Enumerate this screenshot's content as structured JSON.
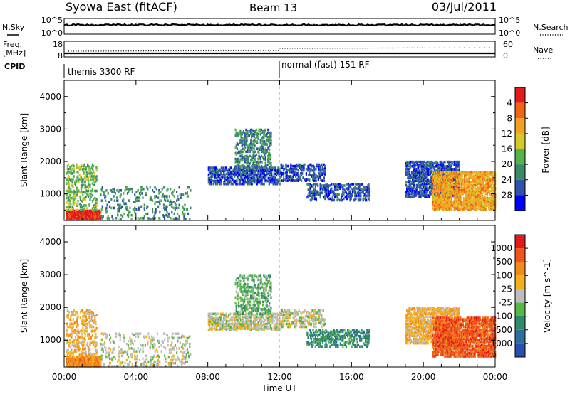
{
  "header": {
    "station": "Syowa East (fitACF)",
    "beam": "Beam 13",
    "date": "03/Jul/2011"
  },
  "noise_panel": {
    "left_label": "N.Sky",
    "left_ticks": [
      "10^5",
      "10^0"
    ],
    "right_label": "N.Search",
    "right_ticks": [
      "10^5",
      "10^0"
    ]
  },
  "freq_panel": {
    "left_label_1": "Freq.",
    "left_label_2": "[MHz]",
    "left_ticks": [
      "18",
      "8"
    ],
    "right_label": "Nave",
    "right_ticks": [
      "60",
      "0"
    ]
  },
  "cpid": {
    "label": "CPID",
    "segments": [
      {
        "name": "themis 3300 RF",
        "start_hour": 0,
        "end_hour": 12
      },
      {
        "name": "normal (fast) 151 RF",
        "start_hour": 12,
        "end_hour": 24
      }
    ]
  },
  "x_axis": {
    "label": "Time UT",
    "tick_labels": [
      "00:00",
      "04:00",
      "08:00",
      "12:00",
      "16:00",
      "20:00",
      "00:00"
    ],
    "range_hours": [
      0,
      24
    ]
  },
  "power_panel": {
    "ylabel": "Slant Range [km]",
    "y_ticks": [
      "1000",
      "2000",
      "3000",
      "4000"
    ],
    "colorbar_label": "Power [dB]",
    "colorbar_ticks": [
      "4",
      "8",
      "12",
      "16",
      "20",
      "24",
      "28"
    ],
    "colors": [
      "#0000ff",
      "#2f52a8",
      "#3c8a6a",
      "#56b24a",
      "#d7c82a",
      "#f2a21e",
      "#f06414",
      "#e31a1c"
    ]
  },
  "velocity_panel": {
    "ylabel": "Velocity [m s^-1]",
    "ylabel_range": "Slant Range [km]",
    "y_ticks": [
      "1000",
      "2000",
      "3000",
      "4000"
    ],
    "colorbar_ticks": [
      "1000",
      "500",
      "100",
      "25",
      "-25",
      "-100",
      "-500",
      "-1000"
    ],
    "colors": [
      "#2a4fb3",
      "#2e6f9a",
      "#2f8a6a",
      "#5ab54a",
      "#bdbdbd",
      "#f2b01e",
      "#f28a1a",
      "#f0561a",
      "#e31a1c"
    ]
  },
  "chart_data": {
    "type": "heatmap",
    "title": "Syowa East (fitACF) Beam 13 03/Jul/2011",
    "xlabel": "Time UT",
    "ylabel": "Slant Range [km]",
    "xlim_hours": [
      0,
      24
    ],
    "ylim_km": [
      180,
      4500
    ],
    "power_clusters": [
      {
        "t0": 0.1,
        "t1": 2.0,
        "r0": 200,
        "r1": 500,
        "level": 7,
        "density": 0.85
      },
      {
        "t0": 0.1,
        "t1": 1.8,
        "r0": 500,
        "r1": 1900,
        "level": 3,
        "density": 0.25
      },
      {
        "t0": 2.0,
        "t1": 7.0,
        "r0": 200,
        "r1": 1200,
        "level": 2,
        "density": 0.12
      },
      {
        "t0": 8.0,
        "t1": 12.0,
        "r0": 1300,
        "r1": 1800,
        "level": 1,
        "density": 0.45
      },
      {
        "t0": 9.5,
        "t1": 11.5,
        "r0": 1800,
        "r1": 3000,
        "level": 2,
        "density": 0.3
      },
      {
        "t0": 12.0,
        "t1": 14.5,
        "r0": 1400,
        "r1": 1900,
        "level": 1,
        "density": 0.35
      },
      {
        "t0": 13.5,
        "t1": 17.0,
        "r0": 800,
        "r1": 1300,
        "level": 1,
        "density": 0.35
      },
      {
        "t0": 19.0,
        "t1": 22.0,
        "r0": 900,
        "r1": 2000,
        "level": 1,
        "density": 0.5
      },
      {
        "t0": 20.5,
        "t1": 24.0,
        "r0": 500,
        "r1": 1700,
        "level": 5,
        "density": 0.6
      }
    ],
    "velocity_clusters": [
      {
        "t0": 0.1,
        "t1": 2.0,
        "r0": 200,
        "r1": 500,
        "level": 6,
        "density": 0.85
      },
      {
        "t0": 0.1,
        "t1": 1.8,
        "r0": 500,
        "r1": 1900,
        "level": 5,
        "density": 0.25
      },
      {
        "t0": 2.0,
        "t1": 7.0,
        "r0": 200,
        "r1": 1200,
        "level": 4,
        "density": 0.12
      },
      {
        "t0": 8.0,
        "t1": 12.0,
        "r0": 1300,
        "r1": 1800,
        "level": 4,
        "density": 0.45
      },
      {
        "t0": 9.5,
        "t1": 11.5,
        "r0": 1800,
        "r1": 3000,
        "level": 3,
        "density": 0.3
      },
      {
        "t0": 12.0,
        "t1": 14.5,
        "r0": 1400,
        "r1": 1900,
        "level": 4,
        "density": 0.35
      },
      {
        "t0": 13.5,
        "t1": 17.0,
        "r0": 800,
        "r1": 1300,
        "level": 2,
        "density": 0.35
      },
      {
        "t0": 19.0,
        "t1": 22.0,
        "r0": 900,
        "r1": 2000,
        "level": 5,
        "density": 0.5
      },
      {
        "t0": 20.5,
        "t1": 24.0,
        "r0": 500,
        "r1": 1700,
        "level": 7,
        "density": 0.6
      }
    ],
    "noise_sky_log10": 5,
    "noise_search_log10": 5,
    "freq_MHz_before_12UT": 11,
    "freq_MHz_after_12UT": 12,
    "nave_before_12UT": 35,
    "nave_after_12UT": 28
  }
}
